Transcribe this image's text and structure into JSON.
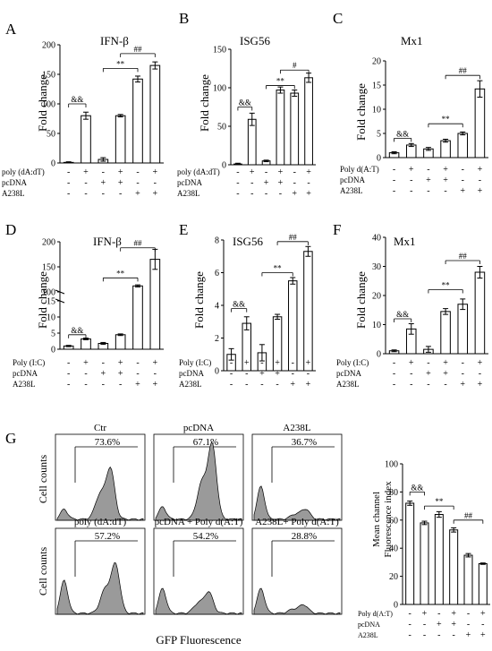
{
  "chart_data": [
    {
      "type": "bar",
      "panel": "A",
      "title": "IFN-β",
      "ylabel": "Fold change",
      "ylim": [
        0,
        200
      ],
      "yticks": [
        0,
        50,
        100,
        150,
        200
      ],
      "values": [
        1,
        80,
        6,
        80,
        142,
        165
      ],
      "errors": [
        1,
        6,
        3,
        2,
        5,
        6
      ],
      "treatments": [
        {
          "label": "poly (dA:dT)",
          "signs": [
            "-",
            "+",
            "-",
            "+",
            "-",
            "+"
          ]
        },
        {
          "label": "pcDNA",
          "signs": [
            "-",
            "-",
            "+",
            "+",
            "-",
            "-"
          ]
        },
        {
          "label": "A238L",
          "signs": [
            "-",
            "-",
            "-",
            "-",
            "+",
            "+"
          ]
        }
      ],
      "annotations": [
        {
          "text": "&&",
          "from": 0,
          "to": 1,
          "y": 100
        },
        {
          "text": "**",
          "from": 2,
          "to": 4,
          "y": 160
        },
        {
          "text": "##",
          "from": 3,
          "to": 5,
          "y": 185
        }
      ]
    },
    {
      "type": "bar",
      "panel": "B",
      "title": "ISG56",
      "ylabel": "Fold change",
      "ylim": [
        0,
        150
      ],
      "yticks": [
        0,
        50,
        100,
        150
      ],
      "values": [
        1,
        59,
        5,
        97,
        93,
        113
      ],
      "errors": [
        1,
        8,
        1,
        4,
        4,
        6
      ],
      "treatments": [
        {
          "label": "poly (dA:dT)",
          "signs": [
            "-",
            "+",
            "-",
            "+",
            "-",
            "+"
          ]
        },
        {
          "label": "pcDNA",
          "signs": [
            "-",
            "-",
            "+",
            "+",
            "-",
            "-"
          ]
        },
        {
          "label": "A238L",
          "signs": [
            "-",
            "-",
            "-",
            "-",
            "+",
            "+"
          ]
        }
      ],
      "annotations": [
        {
          "text": "&&",
          "from": 0,
          "to": 1,
          "y": 75
        },
        {
          "text": "**",
          "from": 2,
          "to": 4,
          "y": 103
        },
        {
          "text": "#",
          "from": 3,
          "to": 5,
          "y": 123
        }
      ]
    },
    {
      "type": "bar",
      "panel": "C",
      "title": "Mx1",
      "ylabel": "Fold change",
      "ylim": [
        0,
        20
      ],
      "yticks": [
        0,
        5,
        10,
        15,
        20
      ],
      "values": [
        1,
        2.6,
        1.8,
        3.5,
        5,
        14.2
      ],
      "errors": [
        0.2,
        0.3,
        0.3,
        0.3,
        0.3,
        1.7
      ],
      "treatments": [
        {
          "label": "Poly d(A:T)",
          "signs": [
            "-",
            "+",
            "-",
            "+",
            "-",
            "+"
          ]
        },
        {
          "label": "pcDNA",
          "signs": [
            "-",
            "-",
            "+",
            "+",
            "-",
            "-"
          ]
        },
        {
          "label": "A238L",
          "signs": [
            "-",
            "-",
            "-",
            "-",
            "+",
            "+"
          ]
        }
      ],
      "annotations": [
        {
          "text": "&&",
          "from": 0,
          "to": 1,
          "y": 4
        },
        {
          "text": "**",
          "from": 2,
          "to": 4,
          "y": 7
        },
        {
          "text": "##",
          "from": 3,
          "to": 5,
          "y": 17
        }
      ]
    },
    {
      "type": "bar",
      "panel": "D",
      "title": "IFN-β",
      "ylabel": "Fold change",
      "ylim": [
        0,
        200
      ],
      "yticks": [
        0,
        5,
        10,
        15,
        100,
        150,
        200
      ],
      "axis_break": true,
      "values": [
        1,
        3.2,
        1.8,
        4.5,
        112,
        165
      ],
      "errors": [
        0.2,
        0.25,
        0.3,
        0.25,
        2,
        20
      ],
      "treatments": [
        {
          "label": "Poly (I:C)",
          "signs": [
            "-",
            "+",
            "-",
            "+",
            "-",
            "+"
          ]
        },
        {
          "label": "pcDNA",
          "signs": [
            "-",
            "-",
            "+",
            "+",
            "-",
            "-"
          ]
        },
        {
          "label": "A238L",
          "signs": [
            "-",
            "-",
            "-",
            "-",
            "+",
            "+"
          ]
        }
      ],
      "annotations": [
        {
          "text": "&&",
          "from": 0,
          "to": 1,
          "y": 4.5
        },
        {
          "text": "**",
          "from": 2,
          "to": 4,
          "y": 128
        },
        {
          "text": "##",
          "from": 3,
          "to": 5,
          "y": 188
        }
      ]
    },
    {
      "type": "bar",
      "panel": "E",
      "title": "ISG56",
      "ylabel": "Fold change",
      "ylim": [
        0,
        8
      ],
      "yticks": [
        0,
        2,
        4,
        6,
        8
      ],
      "values": [
        1,
        2.9,
        1.1,
        3.3,
        5.5,
        7.3
      ],
      "errors": [
        0.35,
        0.4,
        0.5,
        0.15,
        0.2,
        0.3
      ],
      "treatments": [
        {
          "label": "Poly (I:C)",
          "signs": [
            "-",
            "+",
            "-",
            "+",
            "-",
            "+"
          ]
        },
        {
          "label": "pcDNA",
          "signs": [
            "-",
            "-",
            "+",
            "+",
            "-",
            "-"
          ]
        },
        {
          "label": "A238L",
          "signs": [
            "-",
            "-",
            "-",
            "-",
            "+",
            "+"
          ]
        }
      ],
      "annotations": [
        {
          "text": "&&",
          "from": 0,
          "to": 1,
          "y": 3.8
        },
        {
          "text": "**",
          "from": 2,
          "to": 4,
          "y": 6
        },
        {
          "text": "##",
          "from": 3,
          "to": 5,
          "y": 7.9
        }
      ]
    },
    {
      "type": "bar",
      "panel": "F",
      "title": "Mx1",
      "ylabel": "Fold change",
      "ylim": [
        0,
        40
      ],
      "yticks": [
        0,
        10,
        20,
        30,
        40
      ],
      "values": [
        1,
        8.5,
        1.5,
        14.5,
        17,
        28
      ],
      "errors": [
        0.3,
        1.8,
        1,
        1,
        1.8,
        2
      ],
      "treatments": [
        {
          "label": "Poly (I:C)",
          "signs": [
            "-",
            "+",
            "-",
            "+",
            "-",
            "+"
          ]
        },
        {
          "label": "pcDNA",
          "signs": [
            "-",
            "-",
            "+",
            "+",
            "-",
            "-"
          ]
        },
        {
          "label": "A238L",
          "signs": [
            "-",
            "-",
            "-",
            "-",
            "+",
            "+"
          ]
        }
      ],
      "annotations": [
        {
          "text": "&&",
          "from": 0,
          "to": 1,
          "y": 12
        },
        {
          "text": "**",
          "from": 2,
          "to": 4,
          "y": 22
        },
        {
          "text": "##",
          "from": 3,
          "to": 5,
          "y": 32
        }
      ]
    },
    {
      "type": "bar",
      "panel": "G",
      "title": "",
      "ylabel": "Mean channel\nFluorescence index",
      "ylim": [
        0,
        100
      ],
      "yticks": [
        0,
        20,
        40,
        60,
        80,
        100
      ],
      "values": [
        72,
        58,
        64,
        53,
        35,
        29
      ],
      "errors": [
        1.5,
        1.2,
        2,
        1.5,
        1.2,
        0.5
      ],
      "treatments": [
        {
          "label": "Poly d(A:T)",
          "signs": [
            "-",
            "+",
            "-",
            "+",
            "-",
            "+"
          ]
        },
        {
          "label": "pcDNA",
          "signs": [
            "-",
            "-",
            "+",
            "+",
            "-",
            "-"
          ]
        },
        {
          "label": "A238L",
          "signs": [
            "-",
            "-",
            "-",
            "-",
            "+",
            "+"
          ]
        }
      ],
      "annotations": [
        {
          "text": "&&",
          "from": 0,
          "to": 1,
          "y": 80
        },
        {
          "text": "**",
          "from": 1,
          "to": 3,
          "y": 70
        },
        {
          "text": "##",
          "from": 3,
          "to": 5,
          "y": 60
        }
      ]
    }
  ],
  "histograms": {
    "ylabel": "Cell counts",
    "xlabel": "GFP Fluorescence",
    "panels": [
      {
        "title": "Ctr",
        "percent": "73.6%",
        "peak_x": 0.62,
        "peak_h": 0.6,
        "low_h": 0.12
      },
      {
        "title": "pcDNA",
        "percent": "67.1%",
        "peak_x": 0.66,
        "peak_h": 0.88,
        "low_h": 0.15
      },
      {
        "title": "A238L",
        "percent": "36.7%",
        "peak_x": 0.6,
        "peak_h": 0.12,
        "low_h": 0.4
      },
      {
        "title": "poly (dA:dT)",
        "percent": "57.2%",
        "peak_x": 0.68,
        "peak_h": 0.58,
        "low_h": 0.4
      },
      {
        "title": "pcDNA + Poly d(A:T)",
        "percent": "54.2%",
        "peak_x": 0.62,
        "peak_h": 0.25,
        "low_h": 0.3
      },
      {
        "title": "A238L+ Poly  d(A:T)",
        "percent": "28.8%",
        "peak_x": 0.58,
        "peak_h": 0.1,
        "low_h": 0.3
      }
    ]
  }
}
